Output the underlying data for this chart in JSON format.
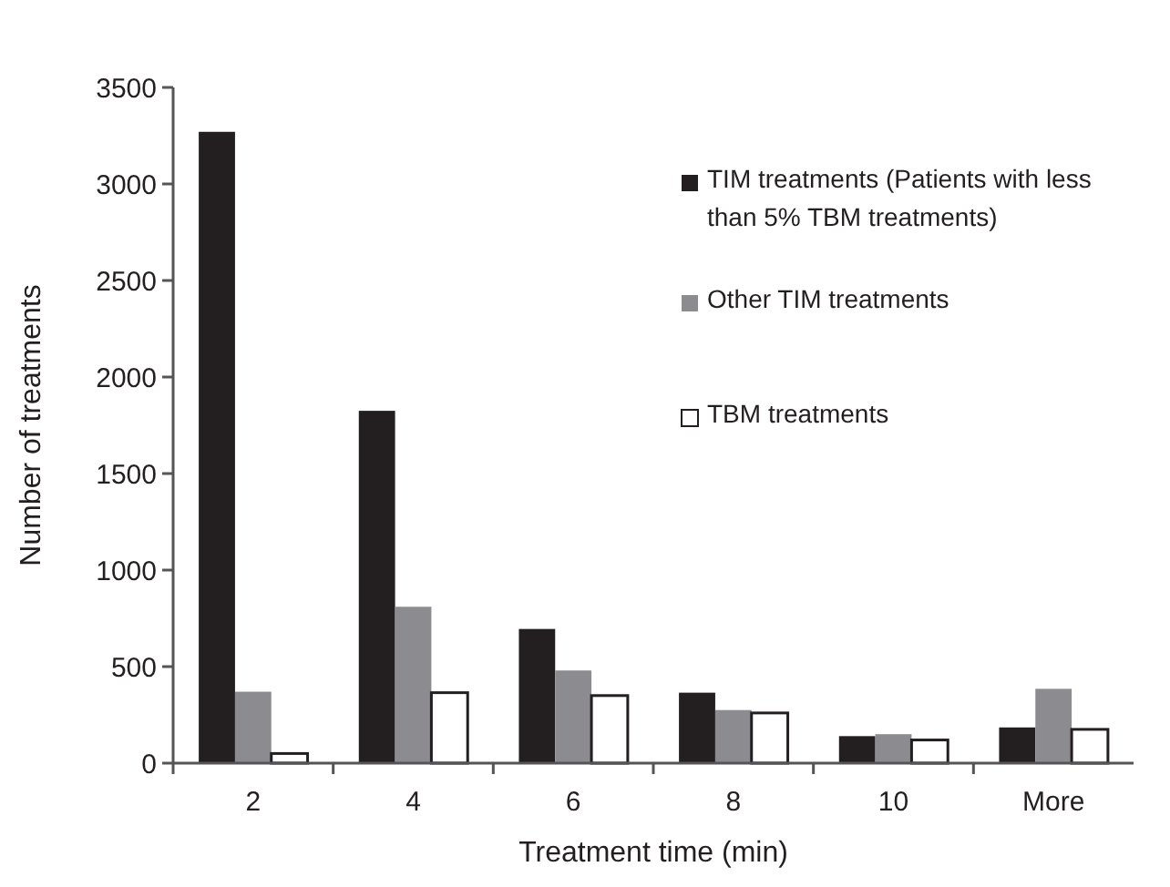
{
  "chart_data": {
    "type": "bar",
    "xlabel": "Treatment time (min)",
    "ylabel": "Number of treatments",
    "categories": [
      "2",
      "4",
      "6",
      "8",
      "10",
      "More"
    ],
    "series": [
      {
        "name": "TIM treatments (Patients with less than 5% TBM treatments)",
        "color": "#231f20",
        "values": [
          3270,
          1825,
          695,
          365,
          140,
          185
        ]
      },
      {
        "name": "Other TIM treatments",
        "color": "#8c8c90",
        "values": [
          370,
          810,
          480,
          275,
          150,
          385
        ]
      },
      {
        "name": "TBM treatments",
        "color": "#ffffff",
        "values": [
          50,
          365,
          350,
          260,
          120,
          175
        ]
      }
    ],
    "ylim": [
      0,
      3500
    ],
    "yticks": [
      0,
      500,
      1000,
      1500,
      2000,
      2500,
      3000,
      3500
    ],
    "legend": "top right",
    "grid": false
  }
}
